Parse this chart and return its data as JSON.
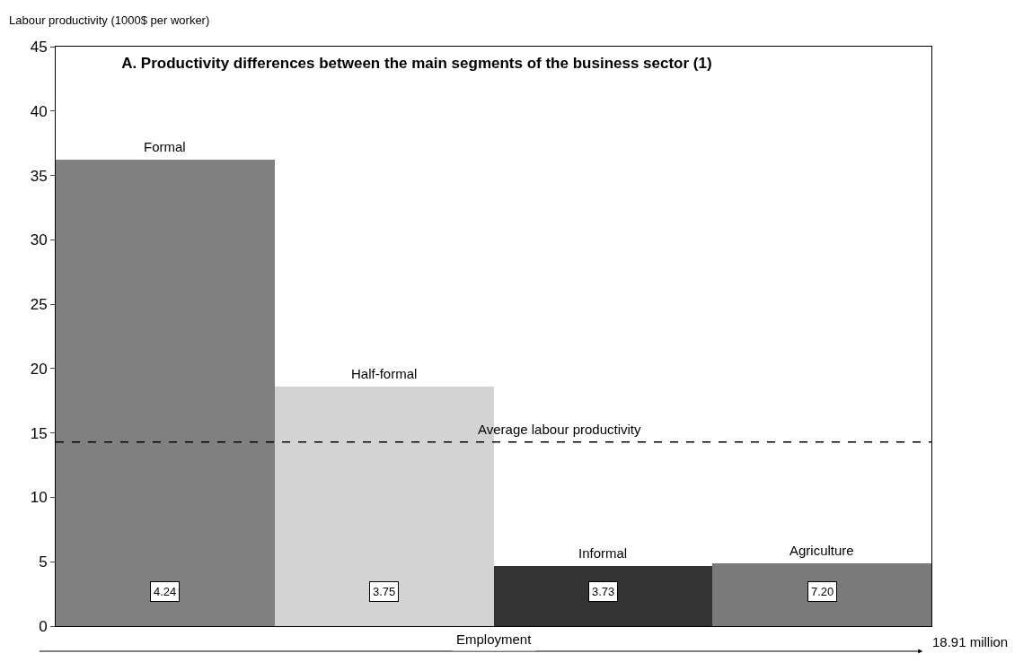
{
  "chart_data": {
    "type": "bar",
    "title": "A. Productivity differences between the main segments of the business sector (1)",
    "ylabel": "Labour productivity (1000$ per worker)",
    "xlabel": "Employment",
    "categories": [
      "Formal",
      "Half-formal",
      "Informal",
      "Agriculture"
    ],
    "values": [
      36.2,
      18.6,
      4.7,
      4.9
    ],
    "colors": [
      "#808080",
      "#d3d3d3",
      "#333333",
      "#7a7a7a"
    ],
    "ylim": [
      0,
      45
    ],
    "yticks": [
      0,
      5,
      10,
      15,
      20,
      25,
      30,
      35,
      40,
      45
    ],
    "grid": false,
    "ref_lines": [
      {
        "axis": "y",
        "value": 14.3,
        "label": "Average labour productivity",
        "line_style": "dashed",
        "color": "#000000"
      }
    ],
    "annotations": [
      "4.24",
      "3.75",
      "3.73",
      "7.20",
      "18.91 million"
    ]
  }
}
